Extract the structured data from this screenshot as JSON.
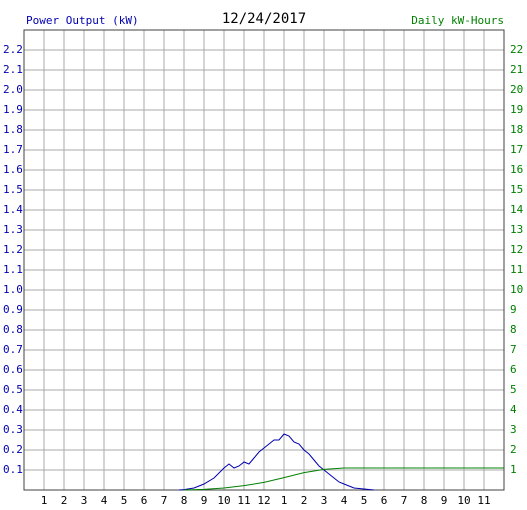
{
  "chart_data": {
    "type": "line",
    "title": "12/24/2017",
    "y_label": "Power Output (kW)",
    "y2_label": "Daily kW-Hours",
    "xlim": [
      0,
      24
    ],
    "xticks": [
      1,
      2,
      3,
      4,
      5,
      6,
      7,
      8,
      9,
      10,
      11,
      12,
      {
        "value": 13,
        "label": "1"
      },
      {
        "value": 14,
        "label": "2"
      },
      {
        "value": 15,
        "label": "3"
      },
      {
        "value": 16,
        "label": "4"
      },
      {
        "value": 17,
        "label": "5"
      },
      {
        "value": 18,
        "label": "6"
      },
      {
        "value": 19,
        "label": "7"
      },
      {
        "value": 20,
        "label": "8"
      },
      {
        "value": 21,
        "label": "9"
      },
      {
        "value": 22,
        "label": "10"
      },
      {
        "value": 23,
        "label": "11"
      }
    ],
    "ylim": [
      0,
      2.3
    ],
    "yticks": [
      0.1,
      0.2,
      0.3,
      0.4,
      0.5,
      0.6,
      0.7,
      0.8,
      0.9,
      {
        "value": 1,
        "label": "1.0"
      },
      1.1,
      1.2,
      1.3,
      1.4,
      1.5,
      1.6,
      1.7,
      1.8,
      1.9,
      {
        "value": 2,
        "label": "2.0"
      },
      2.1,
      2.2
    ],
    "y2lim": [
      0,
      23
    ],
    "y2ticks": [
      1,
      2,
      3,
      4,
      5,
      6,
      7,
      8,
      9,
      10,
      11,
      12,
      13,
      14,
      15,
      16,
      17,
      18,
      19,
      20,
      21,
      22
    ],
    "grid": true,
    "series": [
      {
        "name": "Power Output (kW)",
        "color": "#0000b0",
        "x": [
          7.75,
          8,
          8.5,
          9,
          9.5,
          10,
          10.25,
          10.5,
          10.75,
          11,
          11.25,
          11.5,
          11.75,
          12,
          12.25,
          12.5,
          12.75,
          13,
          13.25,
          13.5,
          13.75,
          14,
          14.25,
          14.5,
          14.75,
          15,
          15.25,
          15.5,
          15.75,
          16,
          16.25,
          16.5,
          17,
          17.5
        ],
        "values": [
          0,
          0.002,
          0.01,
          0.03,
          0.06,
          0.11,
          0.13,
          0.11,
          0.12,
          0.14,
          0.13,
          0.16,
          0.19,
          0.21,
          0.23,
          0.25,
          0.25,
          0.28,
          0.27,
          0.24,
          0.23,
          0.2,
          0.18,
          0.15,
          0.12,
          0.1,
          0.08,
          0.06,
          0.04,
          0.03,
          0.02,
          0.01,
          0.005,
          0
        ]
      },
      {
        "name": "Daily kW-Hours",
        "color": "#008000",
        "axis": "y2",
        "x": [
          8,
          9,
          10,
          11,
          12,
          13,
          14,
          15,
          16,
          17,
          24
        ],
        "values": [
          0,
          0.03,
          0.1,
          0.22,
          0.38,
          0.62,
          0.87,
          1.03,
          1.1,
          1.1,
          1.1
        ]
      }
    ]
  }
}
